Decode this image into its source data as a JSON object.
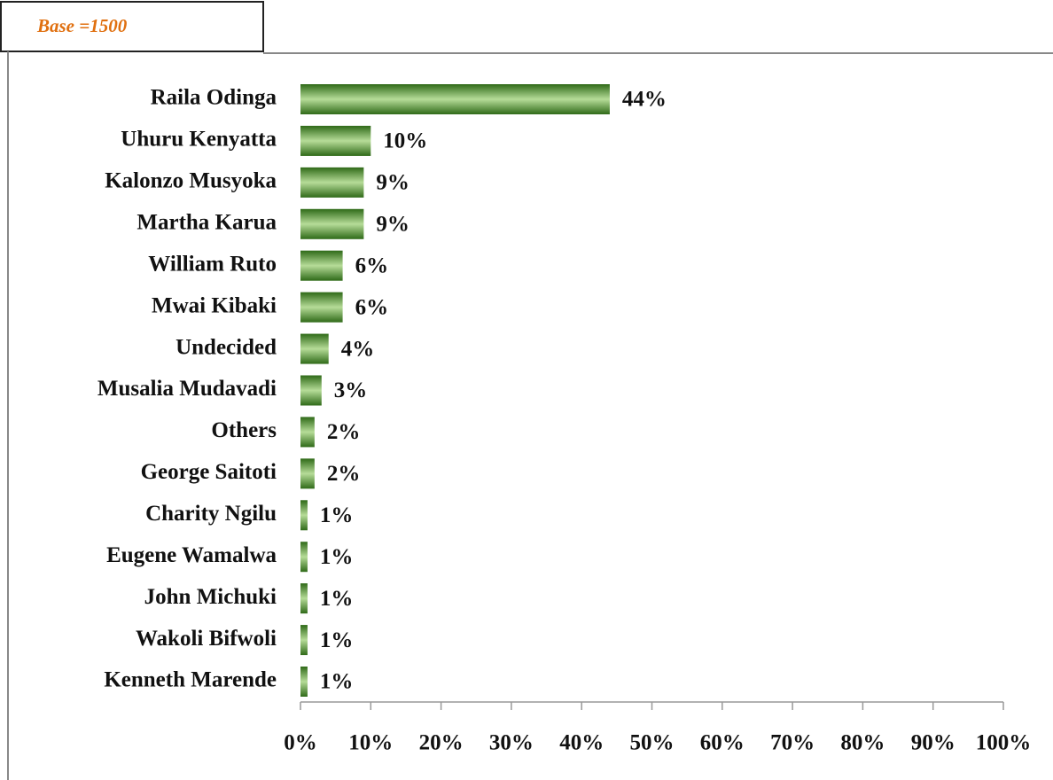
{
  "chart_data": {
    "type": "hbar",
    "annotation": "Base =1500",
    "categories": [
      "Raila Odinga",
      "Uhuru Kenyatta",
      "Kalonzo Musyoka",
      "Martha Karua",
      "William Ruto",
      "Mwai Kibaki",
      "Undecided",
      "Musalia Mudavadi",
      "Others",
      "George Saitoti",
      "Charity Ngilu",
      "Eugene Wamalwa",
      "John Michuki",
      "Wakoli Bifwoli",
      "Kenneth Marende"
    ],
    "values": [
      44,
      10,
      9,
      9,
      6,
      6,
      4,
      3,
      2,
      2,
      1,
      1,
      1,
      1,
      1
    ],
    "value_labels": [
      "44%",
      "10%",
      "9%",
      "9%",
      "6%",
      "6%",
      "4%",
      "3%",
      "2%",
      "2%",
      "1%",
      "1%",
      "1%",
      "1%",
      "1%"
    ],
    "color": "#3f7f24",
    "xlim": [
      0,
      100
    ],
    "xticks": [
      {
        "value": 0,
        "label": "0%"
      },
      {
        "value": 10,
        "label": "10%"
      },
      {
        "value": 20,
        "label": "20%"
      },
      {
        "value": 30,
        "label": "30%"
      },
      {
        "value": 40,
        "label": "40%"
      },
      {
        "value": 50,
        "label": "50%"
      },
      {
        "value": 60,
        "label": "60%"
      },
      {
        "value": 70,
        "label": "70%"
      },
      {
        "value": 80,
        "label": "80%"
      },
      {
        "value": 90,
        "label": "90%"
      },
      {
        "value": 100,
        "label": "100%"
      }
    ]
  }
}
